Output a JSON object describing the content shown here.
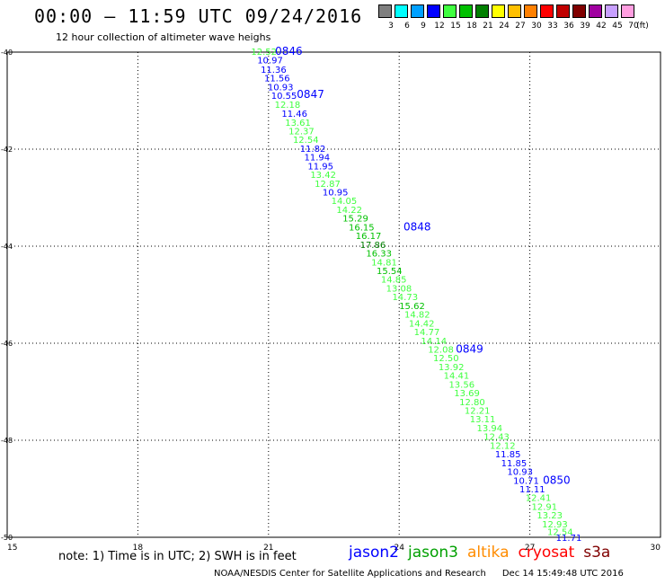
{
  "title": "00:00 – 11:59 UTC 09/24/2016",
  "subtitle": "12 hour collection of altimeter wave heighs",
  "color_scale": {
    "unit": "(ft)",
    "bins": [
      {
        "label": "3",
        "color": "#7f7f7f"
      },
      {
        "label": "6",
        "color": "#00ffff"
      },
      {
        "label": "9",
        "color": "#00a0ff"
      },
      {
        "label": "12",
        "color": "#0000ff"
      },
      {
        "label": "15",
        "color": "#40ff40"
      },
      {
        "label": "18",
        "color": "#00c000"
      },
      {
        "label": "21",
        "color": "#008000"
      },
      {
        "label": "24",
        "color": "#ffff00"
      },
      {
        "label": "27",
        "color": "#ffc000"
      },
      {
        "label": "30",
        "color": "#ff8000"
      },
      {
        "label": "33",
        "color": "#ff0000"
      },
      {
        "label": "36",
        "color": "#c00000"
      },
      {
        "label": "39",
        "color": "#800000"
      },
      {
        "label": "42",
        "color": "#a000a0"
      },
      {
        "label": "45",
        "color": "#c8a0ff"
      },
      {
        "label": "70",
        "color": "#ff9ee0"
      }
    ]
  },
  "note": "note:  1) Time is in UTC;  2) SWH is in feet",
  "legend": [
    {
      "name": "jason2",
      "color": "#0000ff"
    },
    {
      "name": "jason3",
      "color": "#00a000"
    },
    {
      "name": "altika",
      "color": "#ff8c00"
    },
    {
      "name": "cryosat",
      "color": "#ff0000"
    },
    {
      "name": "s3a",
      "color": "#800000"
    }
  ],
  "footer": "NOAA/NESDIS Center for Satellite Applications and Research",
  "timestamp": "Dec 14 15:49:48 UTC 2016",
  "chart_data": {
    "type": "scatter",
    "xlim": [
      15,
      30
    ],
    "ylim": [
      -50,
      -40
    ],
    "x_ticks": [
      "15",
      "18",
      "21",
      "24",
      "27",
      "30"
    ],
    "y_ticks": [
      "-40",
      "-42",
      "-44",
      "-46",
      "-48",
      "-50"
    ],
    "grid": true,
    "points": [
      {
        "x": 20.6,
        "y": -39.98,
        "label": "12.52",
        "color": "#40ff40"
      },
      {
        "x": 20.74,
        "y": -40.16,
        "label": "10.97",
        "color": "#0000ff"
      },
      {
        "x": 20.82,
        "y": -40.35,
        "label": "11.36",
        "color": "#0000ff"
      },
      {
        "x": 20.9,
        "y": -40.53,
        "label": "11.56",
        "color": "#0000ff"
      },
      {
        "x": 20.98,
        "y": -40.71,
        "label": "10.93",
        "color": "#0000ff"
      },
      {
        "x": 21.06,
        "y": -40.89,
        "label": "10.55",
        "color": "#0000ff"
      },
      {
        "x": 21.14,
        "y": -41.07,
        "label": "12.18",
        "color": "#40ff40"
      },
      {
        "x": 21.3,
        "y": -41.26,
        "label": "11.46",
        "color": "#0000ff"
      },
      {
        "x": 21.38,
        "y": -41.44,
        "label": "13.61",
        "color": "#40ff40"
      },
      {
        "x": 21.46,
        "y": -41.62,
        "label": "12.37",
        "color": "#40ff40"
      },
      {
        "x": 21.56,
        "y": -41.8,
        "label": "12.54",
        "color": "#40ff40"
      },
      {
        "x": 21.72,
        "y": -41.98,
        "label": "11.82",
        "color": "#0000ff"
      },
      {
        "x": 21.82,
        "y": -42.16,
        "label": "11.94",
        "color": "#0000ff"
      },
      {
        "x": 21.9,
        "y": -42.34,
        "label": "11.95",
        "color": "#0000ff"
      },
      {
        "x": 21.96,
        "y": -42.52,
        "label": "13.42",
        "color": "#40ff40"
      },
      {
        "x": 22.06,
        "y": -42.7,
        "label": "12.87",
        "color": "#40ff40"
      },
      {
        "x": 22.24,
        "y": -42.88,
        "label": "10.95",
        "color": "#0000ff"
      },
      {
        "x": 22.44,
        "y": -43.06,
        "label": "14.05",
        "color": "#40ff40"
      },
      {
        "x": 22.56,
        "y": -43.24,
        "label": "14.22",
        "color": "#40ff40"
      },
      {
        "x": 22.7,
        "y": -43.42,
        "label": "15.29",
        "color": "#00c000"
      },
      {
        "x": 22.84,
        "y": -43.6,
        "label": "16.15",
        "color": "#00c000"
      },
      {
        "x": 23.0,
        "y": -43.78,
        "label": "16.17",
        "color": "#00c000"
      },
      {
        "x": 23.1,
        "y": -43.96,
        "label": "17.86",
        "color": "#008000"
      },
      {
        "x": 23.24,
        "y": -44.14,
        "label": "16.33",
        "color": "#00c000"
      },
      {
        "x": 23.36,
        "y": -44.32,
        "label": "14.81",
        "color": "#40ff40"
      },
      {
        "x": 23.48,
        "y": -44.5,
        "label": "15.54",
        "color": "#00c000"
      },
      {
        "x": 23.58,
        "y": -44.68,
        "label": "14.85",
        "color": "#40ff40"
      },
      {
        "x": 23.7,
        "y": -44.86,
        "label": "13.08",
        "color": "#40ff40"
      },
      {
        "x": 23.84,
        "y": -45.04,
        "label": "14.73",
        "color": "#40ff40"
      },
      {
        "x": 24.0,
        "y": -45.22,
        "label": "15.62",
        "color": "#00c000"
      },
      {
        "x": 24.12,
        "y": -45.4,
        "label": "14.82",
        "color": "#40ff40"
      },
      {
        "x": 24.22,
        "y": -45.58,
        "label": "14.42",
        "color": "#40ff40"
      },
      {
        "x": 24.34,
        "y": -45.76,
        "label": "14.77",
        "color": "#40ff40"
      },
      {
        "x": 24.5,
        "y": -45.94,
        "label": "14.14",
        "color": "#40ff40"
      },
      {
        "x": 24.66,
        "y": -46.12,
        "label": "12.08",
        "color": "#40ff40"
      },
      {
        "x": 24.78,
        "y": -46.3,
        "label": "12.50",
        "color": "#40ff40"
      },
      {
        "x": 24.9,
        "y": -46.48,
        "label": "13.92",
        "color": "#40ff40"
      },
      {
        "x": 25.02,
        "y": -46.66,
        "label": "14.41",
        "color": "#40ff40"
      },
      {
        "x": 25.14,
        "y": -46.84,
        "label": "13.56",
        "color": "#40ff40"
      },
      {
        "x": 25.26,
        "y": -47.02,
        "label": "13.69",
        "color": "#40ff40"
      },
      {
        "x": 25.38,
        "y": -47.2,
        "label": "12.80",
        "color": "#40ff40"
      },
      {
        "x": 25.5,
        "y": -47.38,
        "label": "12.21",
        "color": "#40ff40"
      },
      {
        "x": 25.62,
        "y": -47.56,
        "label": "13.11",
        "color": "#40ff40"
      },
      {
        "x": 25.78,
        "y": -47.74,
        "label": "13.94",
        "color": "#40ff40"
      },
      {
        "x": 25.94,
        "y": -47.92,
        "label": "12.43",
        "color": "#40ff40"
      },
      {
        "x": 26.08,
        "y": -48.1,
        "label": "12.12",
        "color": "#40ff40"
      },
      {
        "x": 26.2,
        "y": -48.28,
        "label": "11.85",
        "color": "#0000ff"
      },
      {
        "x": 26.34,
        "y": -48.46,
        "label": "11.85",
        "color": "#0000ff"
      },
      {
        "x": 26.48,
        "y": -48.64,
        "label": "10.93",
        "color": "#0000ff"
      },
      {
        "x": 26.62,
        "y": -48.82,
        "label": "10.71",
        "color": "#0000ff"
      },
      {
        "x": 26.76,
        "y": -49.0,
        "label": "11.11",
        "color": "#0000ff"
      },
      {
        "x": 26.9,
        "y": -49.18,
        "label": "12.41",
        "color": "#40ff40"
      },
      {
        "x": 27.04,
        "y": -49.36,
        "label": "12.91",
        "color": "#40ff40"
      },
      {
        "x": 27.16,
        "y": -49.54,
        "label": "13.23",
        "color": "#40ff40"
      },
      {
        "x": 27.28,
        "y": -49.72,
        "label": "12.93",
        "color": "#40ff40"
      },
      {
        "x": 27.4,
        "y": -49.88,
        "label": "12.54",
        "color": "#40ff40"
      },
      {
        "x": 27.6,
        "y": -50.0,
        "label": "11.71",
        "color": "#0000ff"
      }
    ],
    "annotations": [
      {
        "x": 21.15,
        "y": -39.98,
        "label": "0846",
        "color": "#0000ff"
      },
      {
        "x": 21.65,
        "y": -40.87,
        "label": "0847",
        "color": "#0000ff"
      },
      {
        "x": 24.1,
        "y": -43.6,
        "label": "0848",
        "color": "#0000ff"
      },
      {
        "x": 25.3,
        "y": -46.12,
        "label": "0849",
        "color": "#0000ff"
      },
      {
        "x": 27.3,
        "y": -48.82,
        "label": "0850",
        "color": "#0000ff"
      }
    ]
  }
}
